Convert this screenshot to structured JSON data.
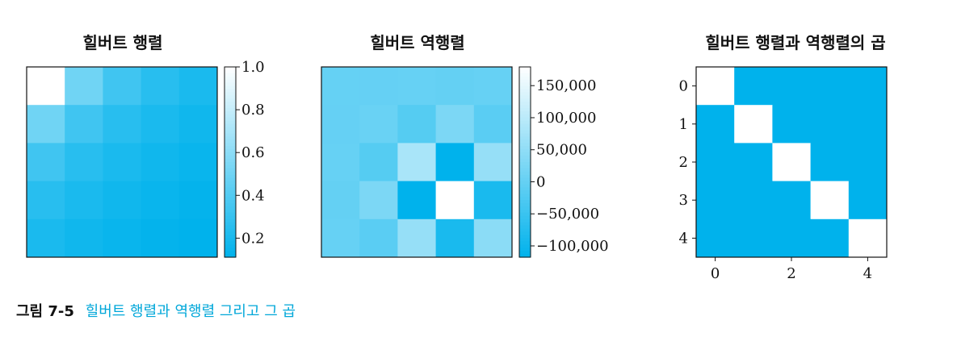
{
  "chart_data": [
    {
      "type": "heatmap",
      "title": "힐버트 행렬",
      "rows": 5,
      "cols": 5,
      "values": [
        [
          1.0,
          0.5,
          0.3333,
          0.25,
          0.2
        ],
        [
          0.5,
          0.3333,
          0.25,
          0.2,
          0.1667
        ],
        [
          0.3333,
          0.25,
          0.2,
          0.1667,
          0.1429
        ],
        [
          0.25,
          0.2,
          0.1667,
          0.1429,
          0.125
        ],
        [
          0.2,
          0.1667,
          0.1429,
          0.125,
          0.1111
        ]
      ],
      "vmin": 0.1111,
      "vmax": 1.0,
      "colorbar": {
        "ticks": [
          1.0,
          0.8,
          0.6,
          0.4,
          0.2
        ],
        "tick_labels": [
          "1.0",
          "0.8",
          "0.6",
          "0.4",
          "0.2"
        ]
      },
      "show_axes_ticks": false
    },
    {
      "type": "heatmap",
      "title": "힐버트 역행렬",
      "rows": 5,
      "cols": 5,
      "values": [
        [
          25,
          -300,
          1050,
          -1400,
          630
        ],
        [
          -300,
          4800,
          -18900,
          26880,
          -12600
        ],
        [
          1050,
          -18900,
          79380,
          -117600,
          56700
        ],
        [
          -1400,
          26880,
          -117600,
          179200,
          -88200
        ],
        [
          630,
          -12600,
          56700,
          -88200,
          44100
        ]
      ],
      "vmin": -117600,
      "vmax": 179200,
      "colorbar": {
        "ticks": [
          150000,
          100000,
          50000,
          0,
          -50000,
          -100000
        ],
        "tick_labels": [
          "150,000",
          "100,000",
          "50,000",
          "0",
          "−50,000",
          "−100,000"
        ]
      },
      "show_axes_ticks": false
    },
    {
      "type": "heatmap",
      "title": "힐버트 행렬과 역행렬의 곱",
      "rows": 5,
      "cols": 5,
      "values": [
        [
          1,
          0,
          0,
          0,
          0
        ],
        [
          0,
          1,
          0,
          0,
          0
        ],
        [
          0,
          0,
          1,
          0,
          0
        ],
        [
          0,
          0,
          0,
          1,
          0
        ],
        [
          0,
          0,
          0,
          0,
          1
        ]
      ],
      "vmin": 0,
      "vmax": 1,
      "y_ticks": [
        "0",
        "1",
        "2",
        "3",
        "4"
      ],
      "x_ticks": [
        "0",
        "2",
        "4"
      ],
      "x_tick_positions": [
        0,
        2,
        4
      ],
      "show_axes_ticks": true
    }
  ],
  "colormap": {
    "low": "#00b2ec",
    "high": "#ffffff"
  },
  "caption": {
    "label": "그림 7-5",
    "text": "힐버트 행렬과 역행렬 그리고 그 곱"
  }
}
